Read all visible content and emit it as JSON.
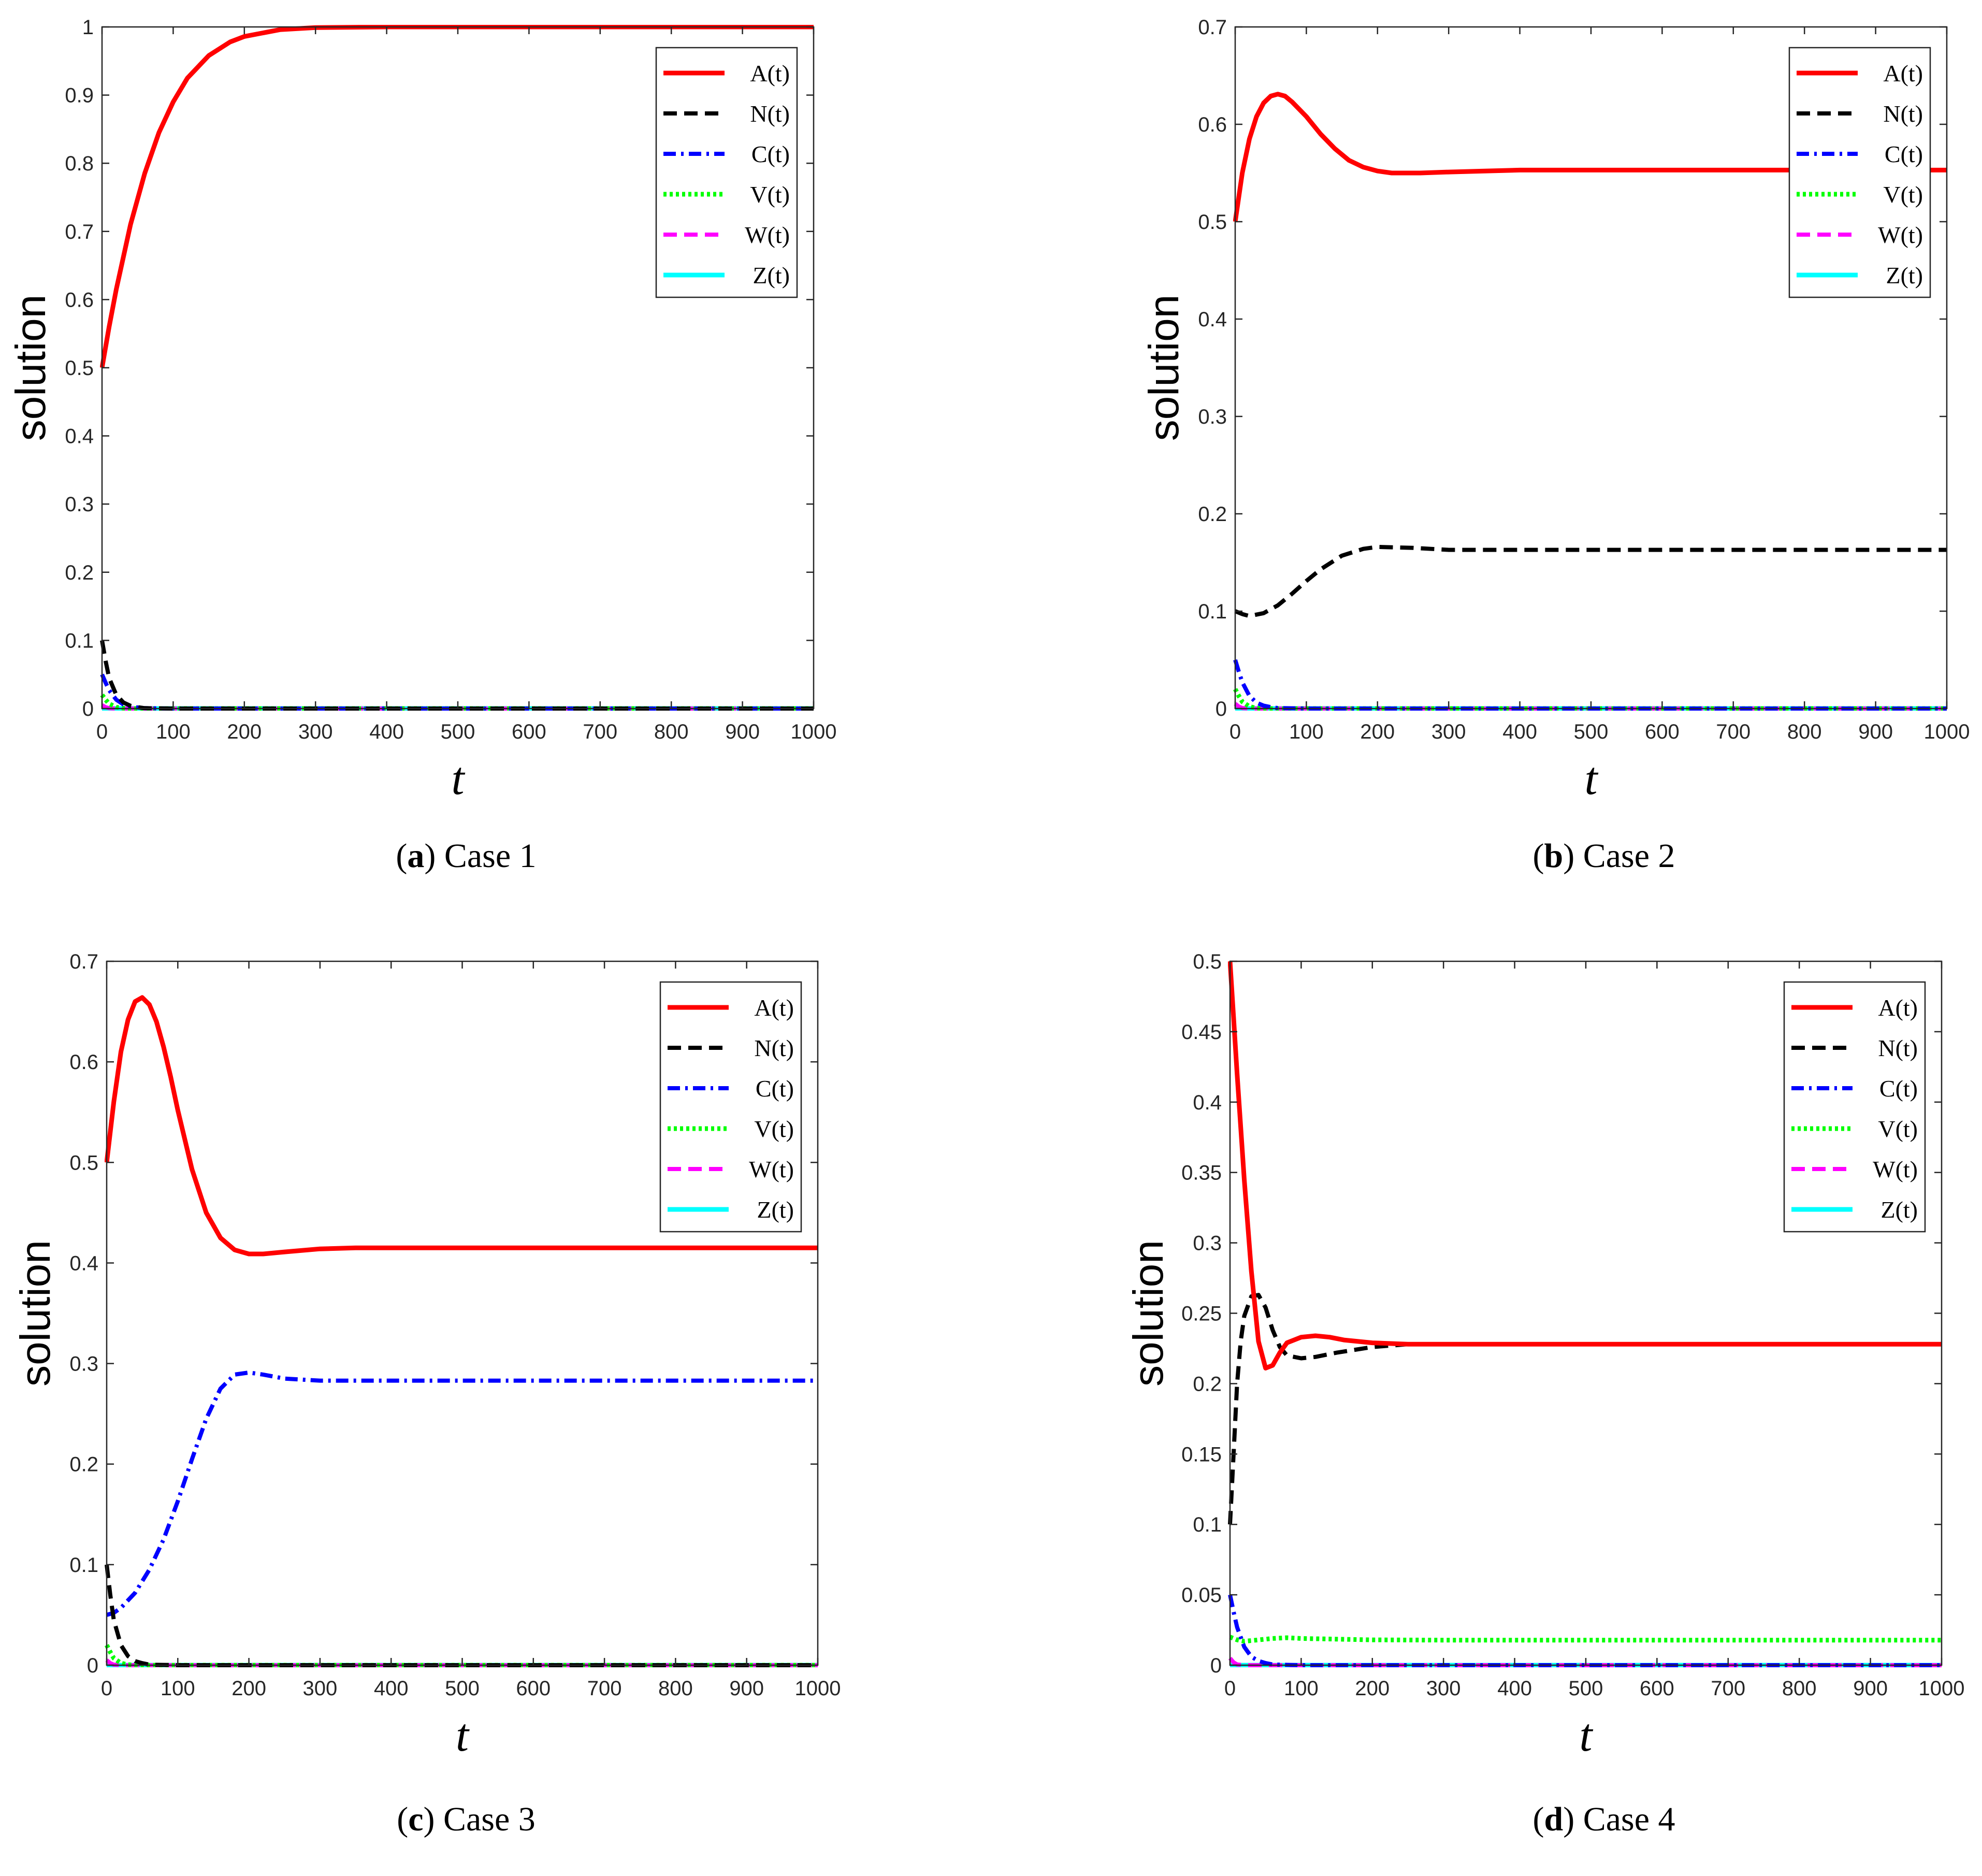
{
  "figure": {
    "captions": [
      {
        "letter": "a",
        "text": " Case 1"
      },
      {
        "letter": "b",
        "text": " Case 2"
      },
      {
        "letter": "c",
        "text": " Case 3"
      },
      {
        "letter": "d",
        "text": " Case 4"
      }
    ]
  },
  "chart_data": [
    {
      "type": "line",
      "title": "",
      "xlabel": "t",
      "ylabel": "solution",
      "xlim": [
        0,
        1000
      ],
      "ylim": [
        0,
        1
      ],
      "xticks": [
        0,
        100,
        200,
        300,
        400,
        500,
        600,
        700,
        800,
        900,
        1000
      ],
      "yticks": [
        "0",
        "0.1",
        "0.2",
        "0.3",
        "0.4",
        "0.5",
        "0.6",
        "0.7",
        "0.8",
        "0.9",
        "1"
      ],
      "legend_position": "top-right",
      "series": [
        {
          "name": "A(t)",
          "color": "#ff0000",
          "style": "solid",
          "x": [
            0,
            10,
            20,
            40,
            60,
            80,
            100,
            120,
            150,
            180,
            200,
            250,
            300,
            400,
            500,
            700,
            1000
          ],
          "y": [
            0.5,
            0.56,
            0.615,
            0.71,
            0.785,
            0.845,
            0.89,
            0.925,
            0.958,
            0.978,
            0.986,
            0.996,
            0.999,
            1,
            1,
            1,
            1
          ]
        },
        {
          "name": "N(t)",
          "color": "#000000",
          "style": "dashed",
          "x": [
            0,
            5,
            10,
            20,
            30,
            40,
            50,
            60,
            100,
            1000
          ],
          "y": [
            0.1,
            0.07,
            0.045,
            0.02,
            0.009,
            0.004,
            0.002,
            0.0005,
            0,
            0
          ]
        },
        {
          "name": "C(t)",
          "color": "#0000ff",
          "style": "dashdot",
          "x": [
            0,
            5,
            10,
            20,
            30,
            40,
            50,
            60,
            100,
            1000
          ],
          "y": [
            0.05,
            0.038,
            0.027,
            0.013,
            0.006,
            0.003,
            0.0015,
            0.0005,
            0,
            0
          ]
        },
        {
          "name": "V(t)",
          "color": "#00ff00",
          "style": "dotted",
          "x": [
            0,
            5,
            10,
            20,
            30,
            40,
            1000
          ],
          "y": [
            0.02,
            0.013,
            0.007,
            0.002,
            0.0005,
            0,
            0
          ]
        },
        {
          "name": "W(t)",
          "color": "#ff00ff",
          "style": "dashed",
          "x": [
            0,
            5,
            10,
            20,
            1000
          ],
          "y": [
            0.005,
            0.002,
            0.0005,
            0,
            0
          ]
        },
        {
          "name": "Z(t)",
          "color": "#00ffff",
          "style": "solid",
          "x": [
            0,
            1000
          ],
          "y": [
            0,
            0
          ]
        }
      ]
    },
    {
      "type": "line",
      "title": "",
      "xlabel": "t",
      "ylabel": "solution",
      "xlim": [
        0,
        1000
      ],
      "ylim": [
        0,
        0.7
      ],
      "xticks": [
        0,
        100,
        200,
        300,
        400,
        500,
        600,
        700,
        800,
        900,
        1000
      ],
      "yticks": [
        "0",
        "0.1",
        "0.2",
        "0.3",
        "0.4",
        "0.5",
        "0.6",
        "0.7"
      ],
      "legend_position": "top-right",
      "series": [
        {
          "name": "A(t)",
          "color": "#ff0000",
          "style": "solid",
          "x": [
            0,
            10,
            20,
            30,
            40,
            50,
            60,
            70,
            80,
            100,
            120,
            140,
            160,
            180,
            200,
            220,
            240,
            260,
            300,
            350,
            400,
            500,
            600,
            1000
          ],
          "y": [
            0.5,
            0.55,
            0.585,
            0.608,
            0.622,
            0.629,
            0.631,
            0.629,
            0.623,
            0.608,
            0.59,
            0.575,
            0.563,
            0.556,
            0.552,
            0.55,
            0.55,
            0.55,
            0.551,
            0.552,
            0.553,
            0.553,
            0.553,
            0.553
          ]
        },
        {
          "name": "N(t)",
          "color": "#000000",
          "style": "dashed",
          "x": [
            0,
            10,
            20,
            40,
            60,
            80,
            100,
            120,
            150,
            180,
            200,
            250,
            300,
            400,
            500,
            1000
          ],
          "y": [
            0.1,
            0.097,
            0.095,
            0.098,
            0.106,
            0.118,
            0.131,
            0.143,
            0.157,
            0.164,
            0.166,
            0.165,
            0.163,
            0.163,
            0.163,
            0.163
          ]
        },
        {
          "name": "C(t)",
          "color": "#0000ff",
          "style": "dashdot",
          "x": [
            0,
            5,
            10,
            20,
            30,
            40,
            50,
            60,
            100,
            1000
          ],
          "y": [
            0.05,
            0.038,
            0.027,
            0.013,
            0.006,
            0.003,
            0.0015,
            0.0005,
            0,
            0
          ]
        },
        {
          "name": "V(t)",
          "color": "#00ff00",
          "style": "dotted",
          "x": [
            0,
            5,
            10,
            20,
            30,
            40,
            1000
          ],
          "y": [
            0.02,
            0.013,
            0.007,
            0.002,
            0.0005,
            0,
            0
          ]
        },
        {
          "name": "W(t)",
          "color": "#ff00ff",
          "style": "dashed",
          "x": [
            0,
            5,
            10,
            20,
            1000
          ],
          "y": [
            0.005,
            0.002,
            0.0005,
            0,
            0
          ]
        },
        {
          "name": "Z(t)",
          "color": "#00ffff",
          "style": "solid",
          "x": [
            0,
            1000
          ],
          "y": [
            0,
            0
          ]
        }
      ]
    },
    {
      "type": "line",
      "title": "",
      "xlabel": "t",
      "ylabel": "solution",
      "xlim": [
        0,
        1000
      ],
      "ylim": [
        0,
        0.7
      ],
      "xticks": [
        0,
        100,
        200,
        300,
        400,
        500,
        600,
        700,
        800,
        900,
        1000
      ],
      "yticks": [
        "0",
        "0.1",
        "0.2",
        "0.3",
        "0.4",
        "0.5",
        "0.6",
        "0.7"
      ],
      "legend_position": "top-right",
      "series": [
        {
          "name": "A(t)",
          "color": "#ff0000",
          "style": "solid",
          "x": [
            0,
            10,
            20,
            30,
            40,
            50,
            60,
            70,
            80,
            90,
            100,
            120,
            140,
            160,
            180,
            200,
            220,
            250,
            300,
            350,
            400,
            500,
            1000
          ],
          "y": [
            0.5,
            0.56,
            0.61,
            0.642,
            0.66,
            0.664,
            0.657,
            0.64,
            0.615,
            0.585,
            0.552,
            0.493,
            0.45,
            0.425,
            0.413,
            0.409,
            0.409,
            0.411,
            0.414,
            0.415,
            0.415,
            0.415,
            0.415
          ]
        },
        {
          "name": "N(t)",
          "color": "#000000",
          "style": "dashed",
          "x": [
            0,
            5,
            10,
            20,
            30,
            40,
            50,
            60,
            100,
            1000
          ],
          "y": [
            0.1,
            0.07,
            0.045,
            0.02,
            0.009,
            0.004,
            0.002,
            0.0005,
            0,
            0
          ]
        },
        {
          "name": "C(t)",
          "color": "#0000ff",
          "style": "dashdot",
          "x": [
            0,
            10,
            20,
            40,
            60,
            80,
            100,
            120,
            140,
            160,
            180,
            200,
            220,
            250,
            300,
            350,
            400,
            500,
            1000
          ],
          "y": [
            0.05,
            0.052,
            0.057,
            0.072,
            0.095,
            0.125,
            0.163,
            0.205,
            0.245,
            0.275,
            0.289,
            0.291,
            0.289,
            0.285,
            0.283,
            0.283,
            0.283,
            0.283,
            0.283
          ]
        },
        {
          "name": "V(t)",
          "color": "#00ff00",
          "style": "dotted",
          "x": [
            0,
            5,
            10,
            20,
            30,
            40,
            1000
          ],
          "y": [
            0.02,
            0.013,
            0.007,
            0.002,
            0.0005,
            0,
            0
          ]
        },
        {
          "name": "W(t)",
          "color": "#ff00ff",
          "style": "dashed",
          "x": [
            0,
            5,
            10,
            20,
            1000
          ],
          "y": [
            0.005,
            0.002,
            0.0005,
            0,
            0
          ]
        },
        {
          "name": "Z(t)",
          "color": "#00ffff",
          "style": "solid",
          "x": [
            0,
            1000
          ],
          "y": [
            0,
            0
          ]
        }
      ]
    },
    {
      "type": "line",
      "title": "",
      "xlabel": "t",
      "ylabel": "solution",
      "xlim": [
        0,
        1000
      ],
      "ylim": [
        0,
        0.5
      ],
      "xticks": [
        0,
        100,
        200,
        300,
        400,
        500,
        600,
        700,
        800,
        900,
        1000
      ],
      "yticks": [
        "0",
        "0.05",
        "0.1",
        "0.15",
        "0.2",
        "0.25",
        "0.3",
        "0.35",
        "0.4",
        "0.45",
        "0.5"
      ],
      "legend_position": "top-right",
      "series": [
        {
          "name": "A(t)",
          "color": "#ff0000",
          "style": "solid",
          "x": [
            0,
            5,
            10,
            20,
            30,
            40,
            50,
            60,
            70,
            80,
            100,
            120,
            140,
            160,
            200,
            250,
            300,
            400,
            500,
            1000
          ],
          "y": [
            0.5,
            0.46,
            0.42,
            0.345,
            0.28,
            0.23,
            0.211,
            0.213,
            0.222,
            0.229,
            0.233,
            0.234,
            0.233,
            0.231,
            0.229,
            0.228,
            0.228,
            0.228,
            0.228,
            0.228
          ]
        },
        {
          "name": "N(t)",
          "color": "#000000",
          "style": "dashed",
          "x": [
            0,
            5,
            10,
            15,
            20,
            30,
            40,
            50,
            60,
            70,
            80,
            100,
            120,
            150,
            200,
            250,
            300,
            400,
            1000
          ],
          "y": [
            0.1,
            0.15,
            0.2,
            0.23,
            0.248,
            0.262,
            0.263,
            0.254,
            0.238,
            0.226,
            0.22,
            0.218,
            0.219,
            0.222,
            0.226,
            0.228,
            0.228,
            0.228,
            0.228
          ]
        },
        {
          "name": "C(t)",
          "color": "#0000ff",
          "style": "dashdot",
          "x": [
            0,
            5,
            10,
            20,
            30,
            40,
            50,
            60,
            100,
            1000
          ],
          "y": [
            0.05,
            0.038,
            0.027,
            0.013,
            0.006,
            0.003,
            0.0015,
            0.0005,
            0,
            0
          ]
        },
        {
          "name": "V(t)",
          "color": "#00ff00",
          "style": "dotted",
          "x": [
            0,
            10,
            20,
            40,
            60,
            80,
            100,
            150,
            200,
            300,
            400,
            500,
            1000
          ],
          "y": [
            0.02,
            0.018,
            0.017,
            0.018,
            0.019,
            0.0195,
            0.019,
            0.0185,
            0.018,
            0.0178,
            0.0178,
            0.0178,
            0.0178
          ]
        },
        {
          "name": "W(t)",
          "color": "#ff00ff",
          "style": "dashed",
          "x": [
            0,
            5,
            10,
            20,
            1000
          ],
          "y": [
            0.005,
            0.002,
            0.0005,
            0,
            0
          ]
        },
        {
          "name": "Z(t)",
          "color": "#00ffff",
          "style": "solid",
          "x": [
            0,
            1000
          ],
          "y": [
            0,
            0
          ]
        }
      ]
    }
  ]
}
